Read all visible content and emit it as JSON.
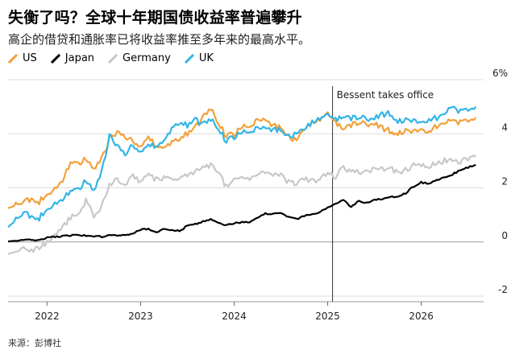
{
  "title": "失衡了吗？全球十年期国债收益率普遍攀升",
  "subtitle": "高企的借贷和通胀率已将收益率推至多年来的最高水平。",
  "source": "来源：彭博社",
  "colors": {
    "US": "#f2a03a",
    "Japan": "#000000",
    "Germany": "#c8c8c8",
    "UK": "#33b5e5"
  },
  "chart_data": {
    "type": "line",
    "title": "失衡了吗？全球十年期国债收益率普遍攀升",
    "subtitle": "高企的借贷和通胀率已将收益率推至多年来的最高水平。",
    "xlabel": "",
    "ylabel": "",
    "x_ticks": [
      "2022",
      "2023",
      "2024",
      "2025",
      "2026"
    ],
    "y_ticks": [
      "6%",
      "4",
      "2",
      "0",
      "-2"
    ],
    "ylim": [
      -2,
      6
    ],
    "xlim": [
      "2021-08",
      "2026-09"
    ],
    "grid": "horizontal",
    "legend_position": "top-left",
    "annotation": {
      "date": "2025-01-20",
      "text": "Bessent takes office"
    },
    "x": [
      "2021-08",
      "2021-09",
      "2021-10",
      "2021-11",
      "2021-12",
      "2022-01",
      "2022-02",
      "2022-03",
      "2022-04",
      "2022-05",
      "2022-06",
      "2022-07",
      "2022-08",
      "2022-09",
      "2022-10",
      "2022-11",
      "2022-12",
      "2023-01",
      "2023-02",
      "2023-03",
      "2023-04",
      "2023-05",
      "2023-06",
      "2023-07",
      "2023-08",
      "2023-09",
      "2023-10",
      "2023-11",
      "2023-12",
      "2024-01",
      "2024-02",
      "2024-03",
      "2024-04",
      "2024-05",
      "2024-06",
      "2024-07",
      "2024-08",
      "2024-09",
      "2024-10",
      "2024-11",
      "2024-12",
      "2025-01",
      "2025-02",
      "2025-03",
      "2025-04",
      "2025-05",
      "2025-06",
      "2025-07",
      "2025-08",
      "2025-09",
      "2025-10",
      "2025-11",
      "2025-12",
      "2026-01",
      "2026-02",
      "2026-03",
      "2026-04",
      "2026-05",
      "2026-06",
      "2026-07",
      "2026-08"
    ],
    "series": [
      {
        "name": "US",
        "values": [
          1.25,
          1.35,
          1.5,
          1.55,
          1.5,
          1.8,
          1.95,
          2.3,
          2.9,
          2.85,
          3.1,
          2.7,
          3.1,
          3.8,
          4.1,
          3.8,
          3.75,
          3.5,
          3.9,
          3.5,
          3.45,
          3.7,
          3.8,
          4.0,
          4.2,
          4.6,
          4.9,
          4.4,
          3.9,
          4.0,
          4.25,
          4.2,
          4.6,
          4.5,
          4.3,
          4.2,
          3.9,
          3.75,
          4.2,
          4.4,
          4.55,
          4.8,
          4.4,
          4.25,
          4.3,
          4.45,
          4.3,
          4.4,
          4.2,
          4.1,
          4.05,
          4.1,
          4.15,
          4.2,
          4.05,
          4.3,
          4.4,
          4.5,
          4.4,
          4.55,
          4.6
        ]
      },
      {
        "name": "Japan",
        "values": [
          0.02,
          0.05,
          0.08,
          0.08,
          0.07,
          0.15,
          0.2,
          0.22,
          0.24,
          0.24,
          0.24,
          0.22,
          0.2,
          0.25,
          0.25,
          0.25,
          0.3,
          0.45,
          0.5,
          0.35,
          0.47,
          0.43,
          0.4,
          0.6,
          0.65,
          0.75,
          0.85,
          0.7,
          0.62,
          0.7,
          0.72,
          0.75,
          0.88,
          1.05,
          1.05,
          1.05,
          0.9,
          0.85,
          0.95,
          1.05,
          1.1,
          1.25,
          1.4,
          1.55,
          1.3,
          1.5,
          1.45,
          1.55,
          1.6,
          1.65,
          1.7,
          1.8,
          2.05,
          2.2,
          2.15,
          2.3,
          2.4,
          2.5,
          2.65,
          2.75,
          2.85
        ]
      },
      {
        "name": "Germany",
        "values": [
          -0.45,
          -0.35,
          -0.15,
          -0.3,
          -0.2,
          0.0,
          0.2,
          0.55,
          0.9,
          1.0,
          1.55,
          1.0,
          1.3,
          2.1,
          2.3,
          2.0,
          2.5,
          2.2,
          2.5,
          2.3,
          2.4,
          2.3,
          2.4,
          2.5,
          2.6,
          2.8,
          2.85,
          2.5,
          2.05,
          2.25,
          2.35,
          2.35,
          2.55,
          2.6,
          2.45,
          2.45,
          2.2,
          2.15,
          2.3,
          2.3,
          2.3,
          2.55,
          2.4,
          2.85,
          2.55,
          2.6,
          2.55,
          2.7,
          2.7,
          2.7,
          2.6,
          2.65,
          2.85,
          2.85,
          2.75,
          2.95,
          3.0,
          3.0,
          3.0,
          3.1,
          3.15
        ]
      },
      {
        "name": "UK",
        "values": [
          0.55,
          0.8,
          1.1,
          0.9,
          0.9,
          1.25,
          1.4,
          1.6,
          1.85,
          1.9,
          2.3,
          1.9,
          2.6,
          3.9,
          3.6,
          3.15,
          3.6,
          3.3,
          3.6,
          3.5,
          3.7,
          4.2,
          4.4,
          4.3,
          4.5,
          4.35,
          4.5,
          4.2,
          3.7,
          3.9,
          4.05,
          4.0,
          4.3,
          4.2,
          4.15,
          4.1,
          3.9,
          4.0,
          4.2,
          4.4,
          4.6,
          4.75,
          4.5,
          4.7,
          4.55,
          4.65,
          4.5,
          4.6,
          4.7,
          4.75,
          4.5,
          4.5,
          4.55,
          4.45,
          4.5,
          4.6,
          4.75,
          5.0,
          4.8,
          4.95,
          5.0
        ]
      }
    ]
  }
}
